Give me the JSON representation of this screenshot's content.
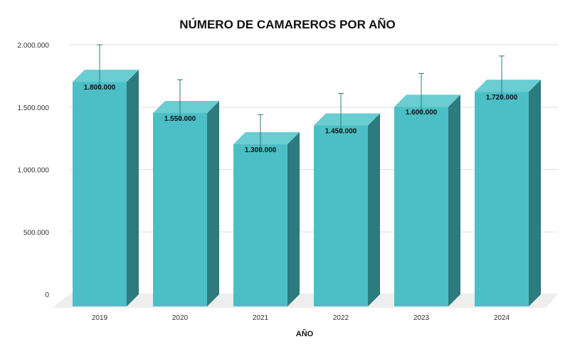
{
  "chart_data": {
    "type": "bar",
    "title": "NÚMERO DE CAMAREROS POR AÑO",
    "xlabel": "AÑO",
    "ylabel": "",
    "categories": [
      "2019",
      "2020",
      "2021",
      "2022",
      "2023",
      "2024"
    ],
    "values": [
      1800000,
      1550000,
      1300000,
      1450000,
      1600000,
      1720000
    ],
    "value_labels": [
      "1.800.000",
      "1.550.000",
      "1.300.000",
      "1.450.000",
      "1.600.000",
      "1.720.000"
    ],
    "error_upper": [
      2000000,
      1720000,
      1440000,
      1610000,
      1770000,
      1910000
    ],
    "ylim": [
      0,
      2000000
    ],
    "yticks": [
      0,
      500000,
      1000000,
      1500000,
      2000000
    ],
    "ytick_labels": [
      "0",
      "500.000",
      "1.000.000",
      "1.500.000",
      "2.000.000"
    ],
    "grid": true,
    "legend": "none",
    "colors": {
      "bar_front": "#4bbfc5",
      "bar_top": "#69cdd2",
      "bar_side": "#2c7b7f",
      "floor": "#eeeeee",
      "grid": "#dddddd",
      "error_bar": "#2c7b7f"
    }
  }
}
